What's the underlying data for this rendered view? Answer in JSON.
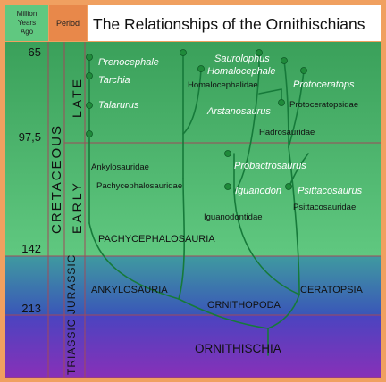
{
  "header": {
    "million_years_lines": [
      "Million",
      "Years",
      "Ago"
    ],
    "period_label": "Period",
    "title": "The Relationships of the Ornithischians"
  },
  "time_ticks": [
    {
      "label": "65"
    },
    {
      "label": "97,5"
    },
    {
      "label": "142"
    },
    {
      "label": "213"
    }
  ],
  "periods": {
    "cretaceous": "CRETACEOUS",
    "late": "LATE",
    "early": "EARLY",
    "jurassic": "JURASSIC",
    "triassic": "TRIASSIC"
  },
  "taxa": {
    "prenocephale": "Prenocephale",
    "tarchia": "Tarchia",
    "talarurus": "Talarurus",
    "saurolophus": "Saurolophus",
    "homalocephale": "Homalocephale",
    "homalocephalidae": "Homalocephalidae",
    "protoceratops": "Protoceratops",
    "arstanosaurus": "Arstanosaurus",
    "protoceratopsidae": "Protoceratopsidae",
    "hadrosauridae": "Hadrosauridae",
    "ankylosauridae": "Ankylosauridae",
    "pachycephalosauridae": "Pachycephalosauridae",
    "probactrosaurus": "Probactrosaurus",
    "iguanodon": "Iguanodon",
    "psittacosaurus": "Psittacosaurus",
    "iguanodontidae": "Iguanodontidae",
    "psittacosauridae": "Psittacosauridae",
    "pachycephalosauria": "PACHYCEPHALOSAURIA",
    "ankylosauria": "ANKYLOSAURIA",
    "ceratopsia": "CERATOPSIA",
    "ornithopoda": "ORNITHOPODA",
    "ornithischia": "ORNITHISCHIA"
  },
  "colors": {
    "border": "#f0a060",
    "header_fill": "#60c880",
    "period_fill": "#e8884a",
    "cretaceous_top": "#3aa05a",
    "cretaceous_bottom": "#60c880",
    "jurassic_top": "#3f9aa0",
    "jurassic_bottom": "#3a56b8",
    "triassic_top": "#4a44c0",
    "triassic_bottom": "#8830b8",
    "grid": "#a04a5a",
    "branch": "#167a3a"
  }
}
